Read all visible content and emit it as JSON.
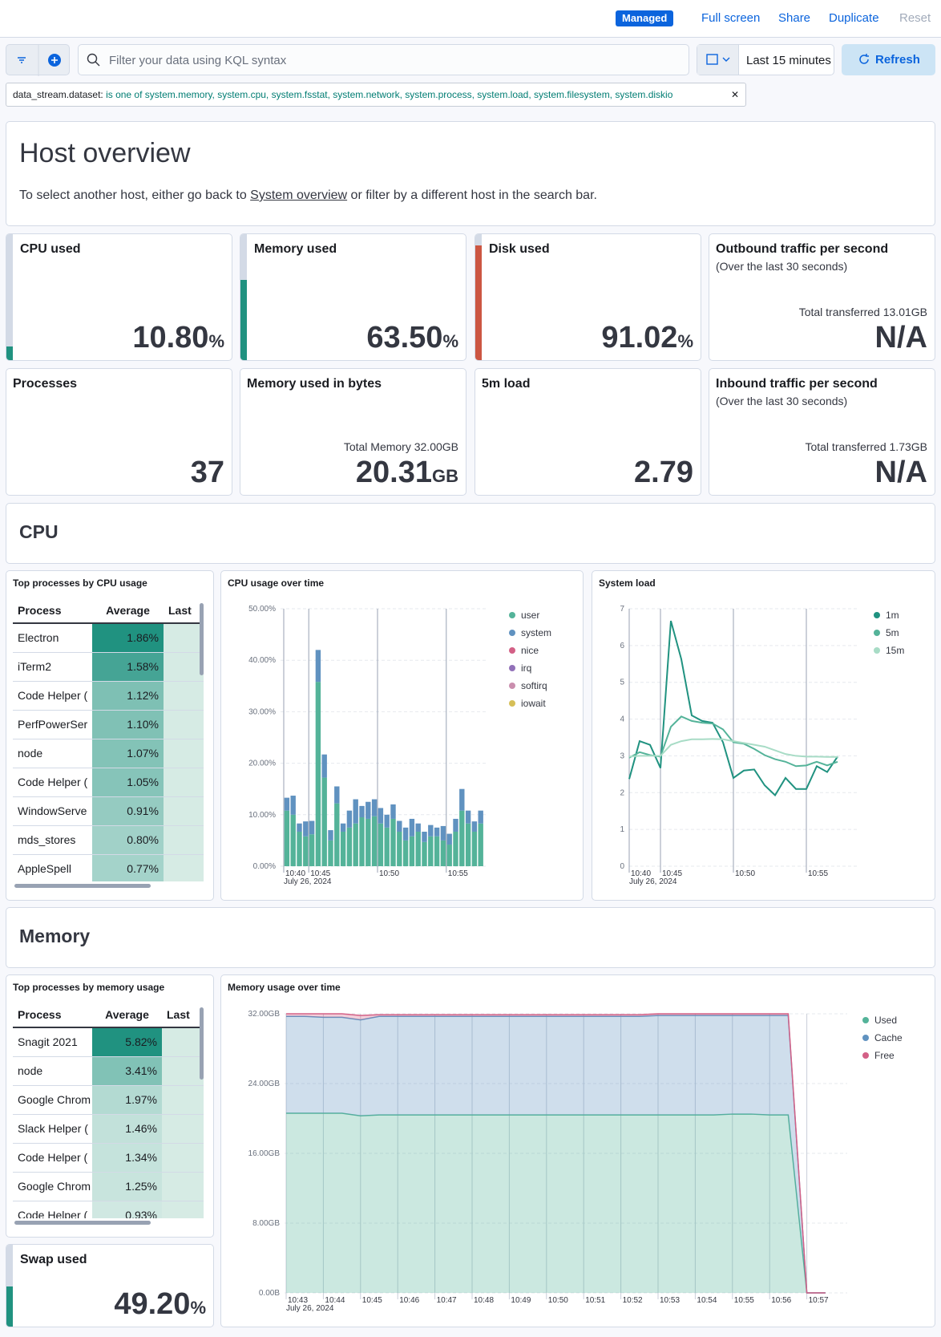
{
  "toolbar": {
    "badge": "Managed",
    "links": [
      "Full screen",
      "Share",
      "Duplicate",
      "Reset"
    ]
  },
  "query": {
    "placeholder": "Filter your data using KQL syntax",
    "time": "Last 15 minutes",
    "refresh": "Refresh"
  },
  "filter": {
    "field": "data_stream.dataset:",
    "value": "is one of system.memory, system.cpu, system.fsstat, system.network, system.process, system.load, system.filesystem, system.diskio"
  },
  "header": {
    "title": "Host overview",
    "before": "To select another host, either go back to ",
    "link": "System overview",
    "after": " or filter by a different host in the search bar."
  },
  "metrics": [
    {
      "title": "CPU used",
      "value": "10.80",
      "unit": "%",
      "color": "#209280"
    },
    {
      "title": "Memory used",
      "value": "63.50",
      "unit": "%",
      "color": "#209280"
    },
    {
      "title": "Disk used",
      "value": "91.02",
      "unit": "%",
      "color": "#cc5642"
    },
    {
      "title": "Outbound traffic per second",
      "subtitle": "(Over the last 30 seconds)",
      "note": "Total transferred 13.01GB",
      "value": "N/A"
    },
    {
      "title": "Processes",
      "value": "37"
    },
    {
      "title": "Memory used in bytes",
      "note": "Total Memory 32.00GB",
      "value": "20.31",
      "unit": "GB"
    },
    {
      "title": "5m load",
      "value": "2.79"
    },
    {
      "title": "Inbound traffic per second",
      "subtitle": "(Over the last 30 seconds)",
      "note": "Total transferred 1.73GB",
      "value": "N/A"
    }
  ],
  "swap": {
    "title": "Swap used",
    "value": "49.20",
    "unit": "%",
    "color": "#209280"
  },
  "sections": [
    "CPU",
    "Memory"
  ],
  "tables": [
    {
      "title": "Top processes by CPU usage",
      "columns": [
        "Process",
        "Average",
        "Last"
      ],
      "rows": [
        [
          "Electron",
          "1.86%"
        ],
        [
          "iTerm2",
          "1.58%"
        ],
        [
          "Code Helper (",
          "1.12%"
        ],
        [
          "PerfPowerSer",
          "1.10%"
        ],
        [
          "node",
          "1.07%"
        ],
        [
          "Code Helper (",
          "1.05%"
        ],
        [
          "WindowServe",
          "0.91%"
        ],
        [
          "mds_stores",
          "0.80%"
        ],
        [
          "AppleSpell",
          "0.77%"
        ]
      ]
    },
    {
      "title": "Top processes by memory usage",
      "columns": [
        "Process",
        "Average",
        "Last"
      ],
      "rows": [
        [
          "Snagit 2021",
          "5.82%"
        ],
        [
          "node",
          "3.41%"
        ],
        [
          "Google Chrom",
          "1.97%"
        ],
        [
          "Slack Helper (",
          "1.46%"
        ],
        [
          "Code Helper (",
          "1.34%"
        ],
        [
          "Google Chrom",
          "1.25%"
        ],
        [
          "Code Helper (",
          "0.93%"
        ]
      ]
    }
  ],
  "chart_data": [
    {
      "type": "bar",
      "stacked": true,
      "title": "CPU usage over time",
      "x_date": "July 26, 2024",
      "categories": [
        "10:40",
        null,
        null,
        null,
        "10:45",
        null,
        null,
        null,
        null,
        null,
        null,
        null,
        null,
        null,
        null,
        "10:50",
        null,
        null,
        null,
        null,
        null,
        null,
        null,
        null,
        null,
        null,
        "10:55",
        null,
        null,
        null,
        null,
        null
      ],
      "ylim": [
        0,
        50
      ],
      "yticks": [
        {
          "value": 0,
          "label": "0.00%"
        },
        {
          "value": 10,
          "label": "10.00%"
        },
        {
          "value": 20,
          "label": "20.00%"
        },
        {
          "value": 30,
          "label": "30.00%"
        },
        {
          "value": 40,
          "label": "40.00%"
        },
        {
          "value": 50,
          "label": "50.00%"
        }
      ],
      "series": [
        {
          "name": "user",
          "color": "#54b399",
          "values": [
            10.8,
            10.0,
            6.7,
            5.8,
            6.2,
            35.8,
            17.2,
            5.0,
            12.2,
            6.7,
            7.5,
            8.3,
            9.5,
            9.2,
            9.7,
            8.3,
            7.5,
            9.2,
            6.7,
            5.0,
            5.8,
            6.7,
            4.7,
            5.8,
            5.8,
            5.0,
            4.2,
            6.7,
            10.8,
            8.3,
            6.7,
            8.3
          ]
        },
        {
          "name": "system",
          "color": "#6092c0",
          "values": [
            2.5,
            3.7,
            1.6,
            2.9,
            2.6,
            6.2,
            4.5,
            2.0,
            3.3,
            1.6,
            3.3,
            4.7,
            2.2,
            3.3,
            3.3,
            3.0,
            2.5,
            2.8,
            2.1,
            2.5,
            3.4,
            1.6,
            2.0,
            2.2,
            1.7,
            2.8,
            2.1,
            2.5,
            4.2,
            2.5,
            2.0,
            2.5
          ]
        },
        {
          "name": "nice",
          "color": "#d36086",
          "values": [
            0,
            0,
            0,
            0,
            0,
            0,
            0,
            0,
            0,
            0,
            0,
            0,
            0,
            0,
            0,
            0,
            0,
            0,
            0,
            0,
            0,
            0,
            0,
            0,
            0,
            0,
            0,
            0,
            0,
            0,
            0,
            0
          ]
        },
        {
          "name": "irq",
          "color": "#9170b8",
          "values": [
            0,
            0,
            0,
            0,
            0,
            0,
            0,
            0,
            0,
            0,
            0,
            0,
            0,
            0,
            0,
            0,
            0,
            0,
            0,
            0,
            0,
            0,
            0,
            0,
            0,
            0,
            0,
            0,
            0,
            0,
            0,
            0
          ]
        },
        {
          "name": "softirq",
          "color": "#ca8eae",
          "values": [
            0,
            0,
            0,
            0,
            0,
            0,
            0,
            0,
            0,
            0,
            0,
            0,
            0,
            0,
            0,
            0,
            0,
            0,
            0,
            0,
            0,
            0,
            0,
            0,
            0,
            0,
            0,
            0,
            0,
            0,
            0,
            0
          ]
        },
        {
          "name": "iowait",
          "color": "#d6bf57",
          "values": [
            0,
            0,
            0,
            0,
            0,
            0,
            0,
            0,
            0,
            0,
            0,
            0,
            0,
            0,
            0,
            0,
            0,
            0,
            0,
            0,
            0,
            0,
            0,
            0,
            0,
            0,
            0,
            0,
            0,
            0,
            0,
            0
          ]
        }
      ]
    },
    {
      "type": "line",
      "title": "System load",
      "x_date": "July 26, 2024",
      "categories": [
        "10:40",
        null,
        null,
        "10:45",
        null,
        null,
        null,
        null,
        null,
        null,
        "10:50",
        null,
        null,
        null,
        null,
        null,
        null,
        "10:55",
        null,
        null,
        null
      ],
      "ylim": [
        0,
        7
      ],
      "yticks": [
        0,
        1,
        2,
        3,
        4,
        5,
        6,
        7
      ],
      "series": [
        {
          "name": "1m",
          "color": "#209280",
          "values": [
            2.37,
            3.4,
            3.3,
            2.67,
            6.67,
            5.63,
            4.1,
            3.95,
            3.9,
            3.37,
            2.4,
            2.6,
            2.63,
            2.2,
            1.93,
            2.4,
            2.1,
            2.1,
            2.72,
            2.56,
            2.98
          ]
        },
        {
          "name": "5m",
          "color": "#54b399",
          "values": [
            2.95,
            3.1,
            3.02,
            2.98,
            3.79,
            4.07,
            3.95,
            3.9,
            3.88,
            3.72,
            3.37,
            3.33,
            3.19,
            3.02,
            2.91,
            2.84,
            2.72,
            2.74,
            2.84,
            2.74,
            2.84
          ]
        },
        {
          "name": "15m",
          "color": "#a8dcc6",
          "values": [
            2.98,
            3.0,
            3.0,
            3.0,
            3.3,
            3.4,
            3.45,
            3.45,
            3.46,
            3.45,
            3.4,
            3.35,
            3.3,
            3.25,
            3.15,
            3.05,
            3.0,
            2.98,
            2.98,
            2.97,
            2.97
          ]
        }
      ]
    },
    {
      "type": "area",
      "stacked": true,
      "title": "Memory usage over time",
      "x_date": "July 26, 2024",
      "categories": [
        "10:43",
        null,
        "10:44",
        null,
        "10:45",
        null,
        "10:46",
        null,
        "10:47",
        null,
        "10:48",
        null,
        "10:49",
        null,
        "10:50",
        null,
        "10:51",
        null,
        "10:52",
        null,
        "10:53",
        null,
        "10:54",
        null,
        "10:55",
        null,
        "10:56",
        null,
        "10:57",
        null
      ],
      "ylim": [
        0,
        32
      ],
      "yticks": [
        {
          "value": 0,
          "label": "0.00B"
        },
        {
          "value": 8,
          "label": "8.00GB"
        },
        {
          "value": 16,
          "label": "16.00GB"
        },
        {
          "value": 24,
          "label": "24.00GB"
        },
        {
          "value": 32,
          "label": "32.00GB"
        }
      ],
      "series": [
        {
          "name": "Used",
          "color": "#54b399",
          "values": [
            20.6,
            20.6,
            20.6,
            20.6,
            20.3,
            20.4,
            20.4,
            20.4,
            20.4,
            20.4,
            20.4,
            20.4,
            20.4,
            20.4,
            20.4,
            20.4,
            20.4,
            20.4,
            20.4,
            20.4,
            20.4,
            20.4,
            20.4,
            20.4,
            20.5,
            20.5,
            20.4,
            20.4,
            0,
            0
          ]
        },
        {
          "name": "Cache",
          "color": "#6092c0",
          "values": [
            11.1,
            11.1,
            11.0,
            11.0,
            11.0,
            11.3,
            11.3,
            11.3,
            11.3,
            11.3,
            11.3,
            11.3,
            11.3,
            11.3,
            11.3,
            11.3,
            11.3,
            11.3,
            11.3,
            11.3,
            11.4,
            11.4,
            11.4,
            11.4,
            11.3,
            11.3,
            11.4,
            11.4,
            0,
            0
          ]
        },
        {
          "name": "Free",
          "color": "#d36086",
          "values": [
            0.3,
            0.3,
            0.4,
            0.4,
            0.5,
            0.2,
            0.2,
            0.2,
            0.2,
            0.2,
            0.2,
            0.2,
            0.2,
            0.2,
            0.2,
            0.2,
            0.2,
            0.2,
            0.2,
            0.2,
            0.2,
            0.2,
            0.2,
            0.2,
            0.2,
            0.2,
            0.2,
            0.2,
            0,
            0
          ]
        }
      ]
    }
  ]
}
